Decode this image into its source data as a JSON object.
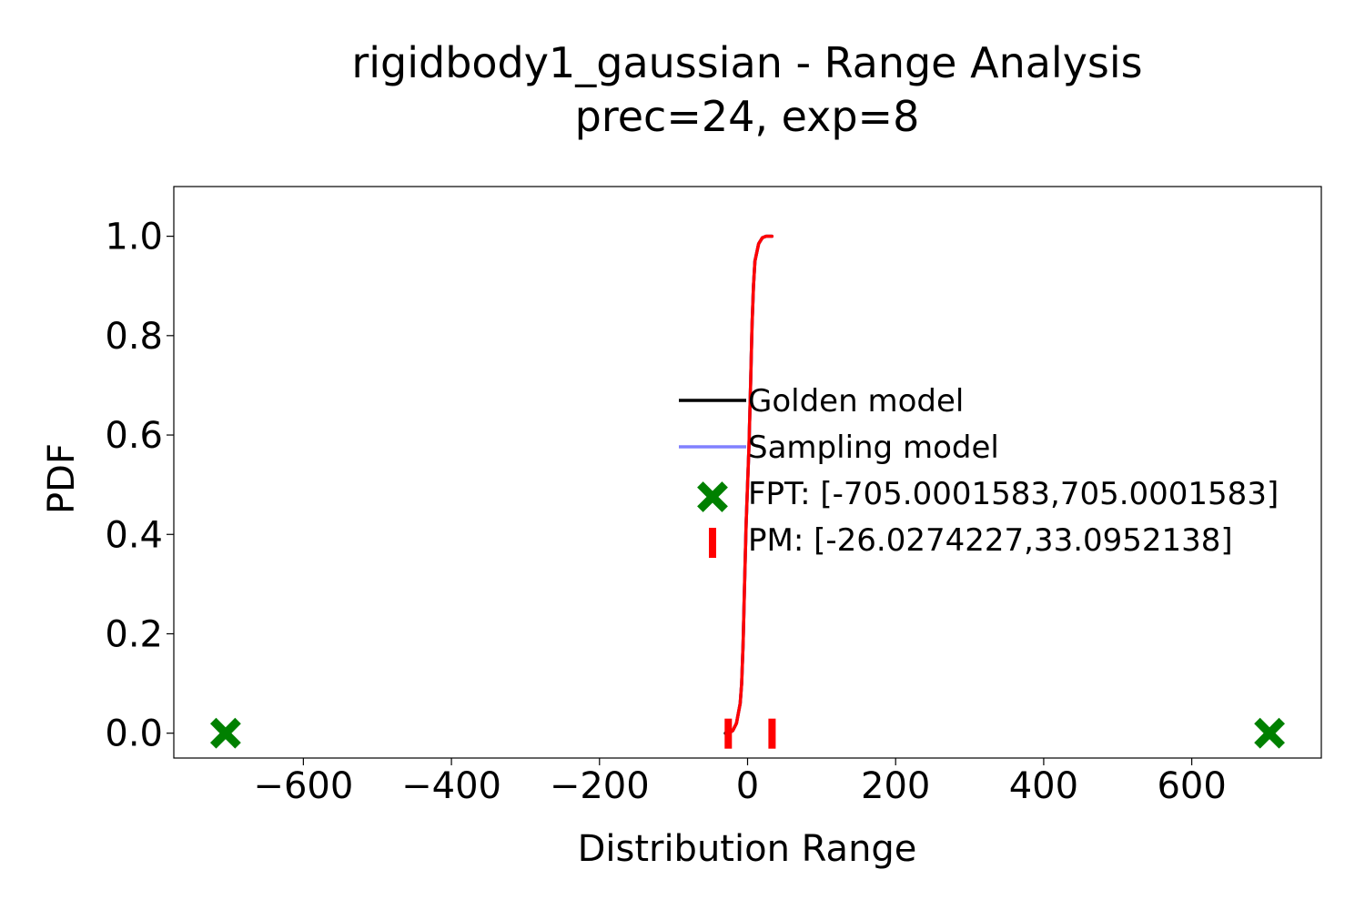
{
  "chart_data": {
    "type": "line",
    "title": "rigidbody1_gaussian - Range Analysis",
    "subtitle": "prec=24, exp=8",
    "xlabel": "Distribution Range",
    "ylabel": "PDF",
    "xlim": [
      -775,
      775
    ],
    "ylim": [
      -0.05,
      1.1
    ],
    "x_ticks": [
      -600,
      -400,
      -200,
      0,
      200,
      400,
      600
    ],
    "x_tick_labels": [
      "−600",
      "−400",
      "−200",
      "0",
      "200",
      "400",
      "600"
    ],
    "y_ticks": [
      0.0,
      0.2,
      0.4,
      0.6,
      0.8,
      1.0
    ],
    "y_tick_labels": [
      "0.0",
      "0.2",
      "0.4",
      "0.6",
      "0.8",
      "1.0"
    ],
    "grid": false,
    "legend_position": "center-right",
    "series": [
      {
        "name": "Golden model",
        "color": "#000000",
        "x": [
          -30,
          -26,
          -20,
          -15,
          -10,
          -8,
          -6,
          -4,
          -2,
          0,
          2,
          4,
          6,
          8,
          10,
          15,
          20,
          25,
          30,
          33
        ],
        "y": [
          0.0,
          0.0,
          0.005,
          0.02,
          0.06,
          0.1,
          0.18,
          0.3,
          0.42,
          0.5,
          0.58,
          0.7,
          0.82,
          0.9,
          0.95,
          0.985,
          0.997,
          1.0,
          1.0,
          1.0
        ]
      },
      {
        "name": "Sampling model",
        "color": "#8080ff",
        "x": [
          -26,
          -20,
          -15,
          -10,
          -8,
          -6,
          -4,
          -2,
          0,
          2,
          4,
          6,
          8,
          10,
          15,
          20,
          25,
          30,
          33
        ],
        "y": [
          0.0,
          0.005,
          0.02,
          0.06,
          0.1,
          0.18,
          0.3,
          0.42,
          0.5,
          0.58,
          0.7,
          0.82,
          0.9,
          0.95,
          0.985,
          0.997,
          1.0,
          1.0,
          1.0
        ]
      },
      {
        "name": "",
        "color": "#ff0000",
        "x": [
          -26,
          -20,
          -15,
          -10,
          -8,
          -6,
          -4,
          -2,
          0,
          2,
          4,
          6,
          8,
          10,
          15,
          20,
          25,
          30,
          33
        ],
        "y": [
          0.0,
          0.005,
          0.02,
          0.06,
          0.1,
          0.18,
          0.3,
          0.42,
          0.5,
          0.58,
          0.7,
          0.82,
          0.9,
          0.95,
          0.985,
          0.997,
          1.0,
          1.0,
          1.0
        ]
      }
    ],
    "markers": [
      {
        "name": "FPT: [-705.0001583,705.0001583]",
        "shape": "X",
        "color": "#008000",
        "x": [
          -705.0001583,
          705.0001583
        ],
        "y": [
          0.0,
          0.0
        ]
      },
      {
        "name": "PM: [-26.0274227,33.0952138]",
        "shape": "|",
        "color": "#ff0000",
        "x": [
          -26.0274227,
          33.0952138
        ],
        "y": [
          0.0,
          0.0
        ]
      }
    ]
  }
}
